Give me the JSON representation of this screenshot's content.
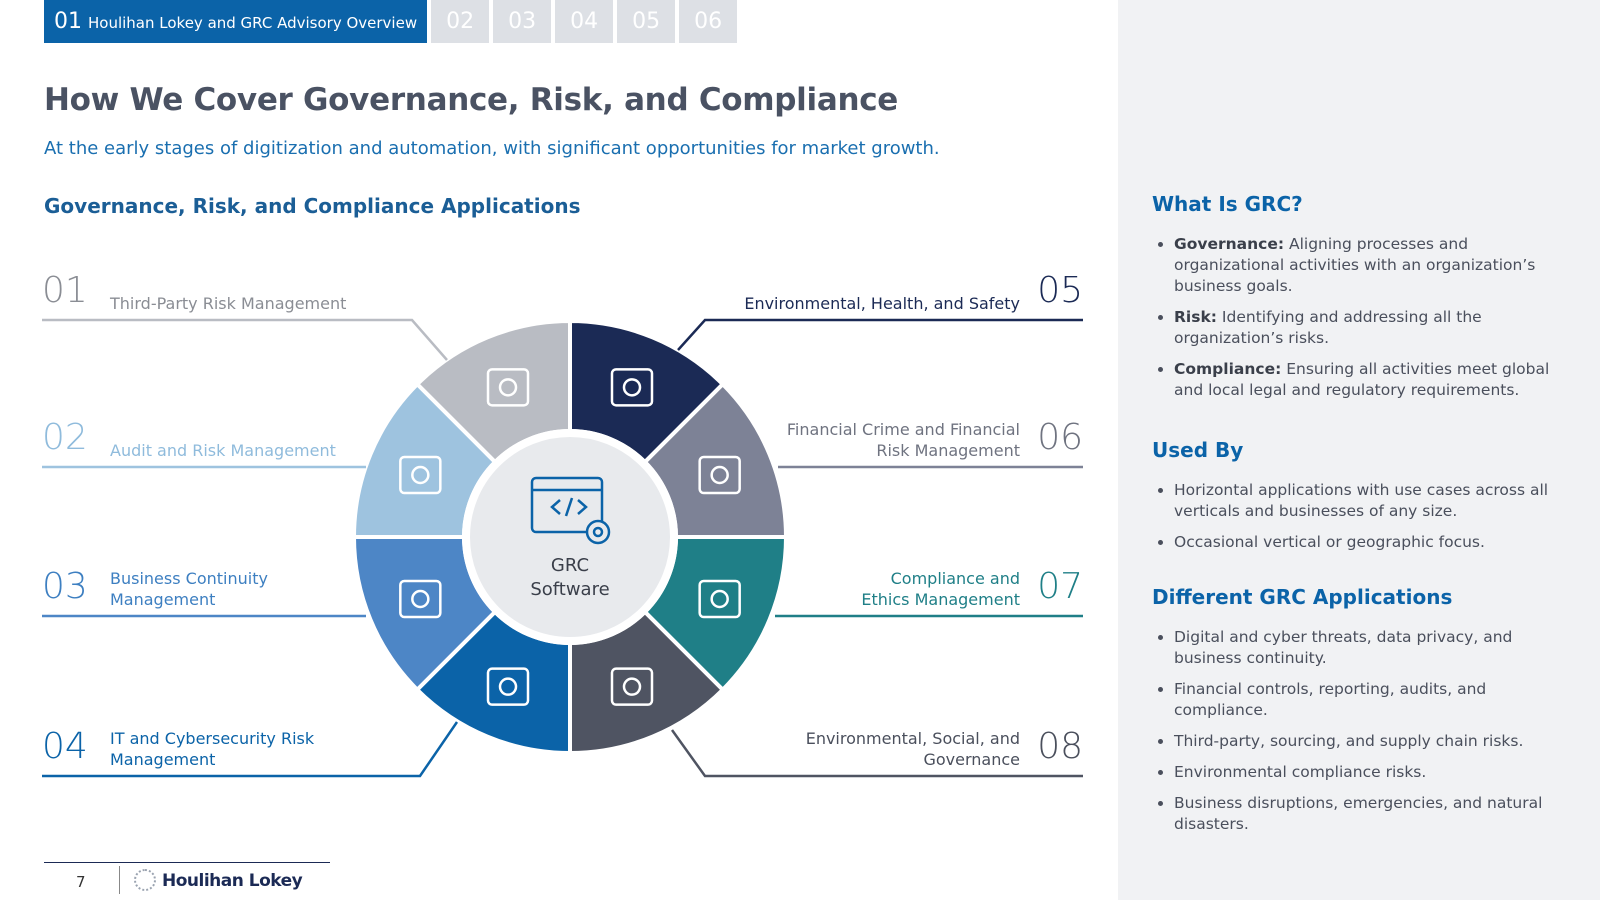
{
  "tabs": [
    {
      "number": "01",
      "label": "Houlihan Lokey and GRC Advisory Overview"
    },
    {
      "number": "02"
    },
    {
      "number": "03"
    },
    {
      "number": "04"
    },
    {
      "number": "05"
    },
    {
      "number": "06"
    }
  ],
  "header": {
    "title": "How We Cover Governance, Risk, and Compliance",
    "subtitle": "At the early stages of digitization and automation, with significant opportunities for market growth."
  },
  "diagram": {
    "heading": "Governance, Risk, and Compliance Applications",
    "center": [
      "GRC",
      "Software"
    ],
    "items": [
      {
        "number": "01",
        "label": "Third-Party Risk Management",
        "color": "#b9bcc3",
        "text_color": "#8a8d94"
      },
      {
        "number": "02",
        "label": "Audit and Risk Management",
        "color": "#9ec3df",
        "text_color": "#8fbbdc"
      },
      {
        "number": "03",
        "label": "Business Continuity Management",
        "color": "#4d86c6",
        "text_color": "#3d7fc1"
      },
      {
        "number": "04",
        "label": "IT and Cybersecurity Risk Management",
        "color": "#0b63a8",
        "text_color": "#0b63a8"
      },
      {
        "number": "05",
        "label": "Environmental, Health, and Safety",
        "color": "#1b2a55",
        "text_color": "#1b2a55"
      },
      {
        "number": "06",
        "label": "Financial Crime and Financial Risk Management",
        "color": "#7d8296",
        "text_color": "#6f7380"
      },
      {
        "number": "07",
        "label": "Compliance and Ethics Management",
        "color": "#1f7f87",
        "text_color": "#1f7f87"
      },
      {
        "number": "08",
        "label": "Environmental, Social, and Governance",
        "color": "#4f5462",
        "text_color": "#4a4f5c"
      }
    ]
  },
  "sidebar": [
    {
      "heading": "What Is GRC?",
      "bullets": [
        {
          "term": "Governance:",
          "text": "Aligning processes and organizational activities with an organization’s business goals."
        },
        {
          "term": "Risk:",
          "text": "Identifying and addressing all the organization’s risks."
        },
        {
          "term": "Compliance:",
          "text": "Ensuring all activities meet global and local legal and regulatory requirements."
        }
      ]
    },
    {
      "heading": "Used By",
      "bullets": [
        {
          "text": "Horizontal applications with use cases across all verticals and businesses of any size."
        },
        {
          "text": "Occasional vertical or geographic focus."
        }
      ]
    },
    {
      "heading": "Different GRC Applications",
      "bullets": [
        {
          "text": "Digital and cyber threats, data privacy, and business continuity."
        },
        {
          "text": "Financial controls, reporting, audits, and compliance."
        },
        {
          "text": "Third-party, sourcing, and supply chain risks."
        },
        {
          "text": "Environmental compliance risks."
        },
        {
          "text": "Business disruptions, emergencies, and natural disasters."
        }
      ]
    }
  ],
  "footer": {
    "page": "7",
    "logo": "Houlihan Lokey"
  }
}
